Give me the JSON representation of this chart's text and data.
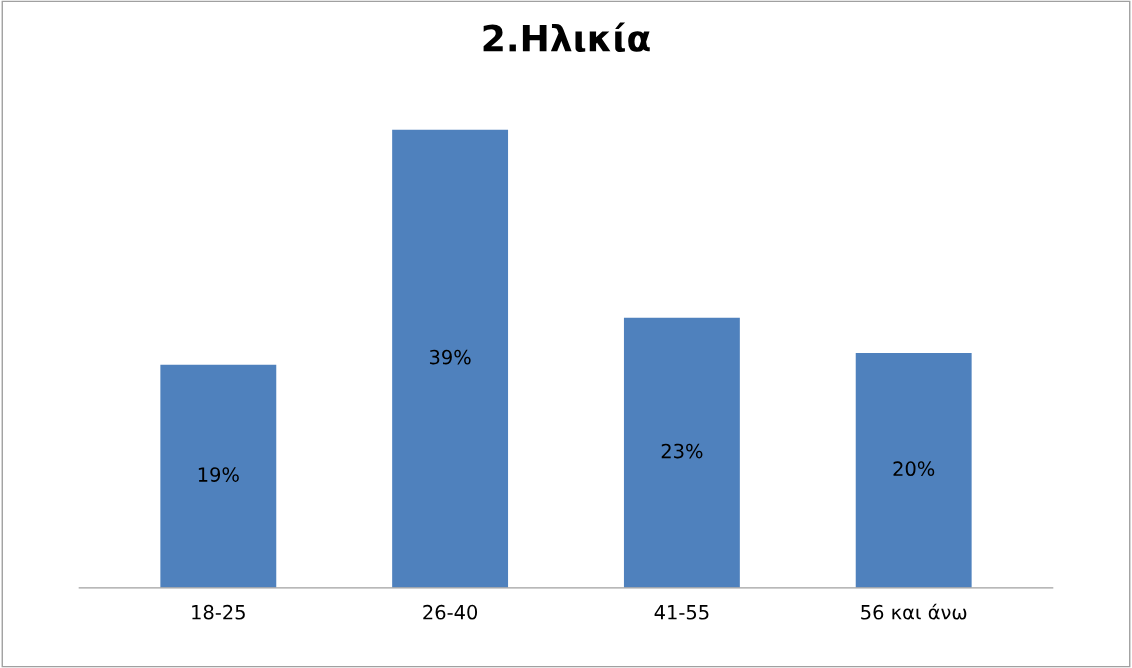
{
  "chart_data": {
    "type": "bar",
    "title": "2.Ηλικία",
    "categories": [
      "18-25",
      "26-40",
      "41-55",
      "56 και άνω"
    ],
    "values": [
      19,
      39,
      23,
      20
    ],
    "value_labels": [
      "19%",
      "39%",
      "23%",
      "20%"
    ],
    "color": "#4f81bd"
  }
}
